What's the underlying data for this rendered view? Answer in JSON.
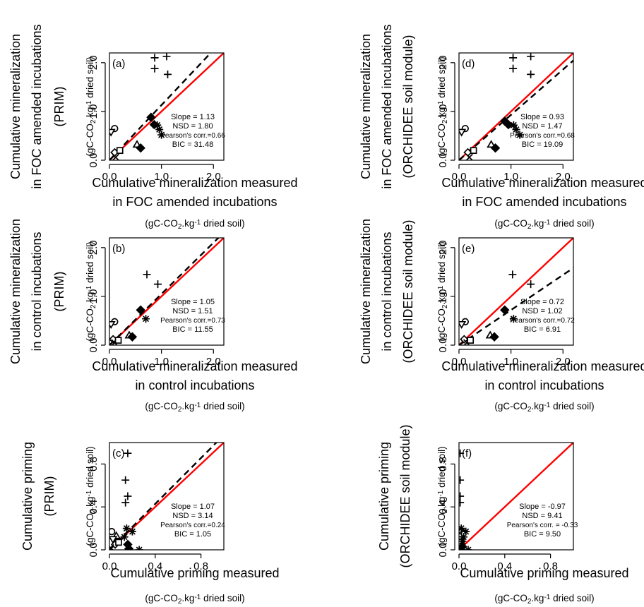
{
  "panels": [
    {
      "tag": "(a)",
      "ylabel": [
        "Cumulative mineralization",
        "in FOC amended incubations",
        "(PRIM)"
      ],
      "xlabel": [
        "Cumulative mineralization measured",
        "in FOC amended incubations"
      ],
      "stats": [
        "Slope = 1.13",
        "NSD = 1.80",
        "Pearson's corr.=0.66",
        "BIC = 31.48"
      ]
    },
    {
      "tag": "(b)",
      "ylabel": [
        "Cumulative mineralization",
        "in control incubations",
        "(PRIM)"
      ],
      "xlabel": [
        "Cumulative mineralization measured",
        "in control incubations"
      ],
      "stats": [
        "Slope = 1.05",
        "NSD = 1.51",
        "Pearson's corr.=0.73",
        "BIC = 11.55"
      ]
    },
    {
      "tag": "(c)",
      "ylabel": [
        "Cumulative priming",
        "(PRIM)"
      ],
      "xlabel": [
        "Cumulative priming measured"
      ],
      "stats": [
        "Slope = 1.07",
        "NSD = 3.14",
        "Pearson's corr.=0.24",
        "BIC = 1.05"
      ]
    },
    {
      "tag": "(d)",
      "ylabel": [
        "Cumulative mineralization",
        "in FOC amended incubations",
        "(ORCHIDEE soil module)"
      ],
      "xlabel": [
        "Cumulative mineralization measured",
        "in FOC amended incubations"
      ],
      "stats": [
        "Slope = 0.93",
        "NSD = 1.47",
        "Pearson's corr.=0.68",
        "BIC = 19.09"
      ]
    },
    {
      "tag": "(e)",
      "ylabel": [
        "Cumulative mineralization",
        "in control incubations",
        "(ORCHIDEE soil module)"
      ],
      "xlabel": [
        "Cumulative mineralization measured",
        "in control incubations"
      ],
      "stats": [
        "Slope = 0.72",
        "NSD = 1.02",
        "Pearson's corr.=0.72",
        "BIC = 6.91"
      ]
    },
    {
      "tag": "(f)",
      "ylabel": [
        "Cumulative priming",
        "(ORCHIDEE soil module)"
      ],
      "xlabel": [
        "Cumulative priming measured"
      ],
      "stats": [
        "Slope = -0.97",
        "NSD = 9.41",
        "Pearson's corr. = -0.33",
        "BIC = 9.50"
      ]
    }
  ],
  "units": {
    "prefix": "(gC-CO",
    "sub": "2",
    "mid": ".kg",
    "sup": "-1",
    "suffix": " dried soil)"
  },
  "chart_data": [
    {
      "type": "scatter",
      "panel": "a",
      "xlim": [
        0,
        2.2
      ],
      "ylim": [
        0,
        2.2
      ],
      "xticks": [
        "0.0",
        "1.0",
        "2.0"
      ],
      "yticks": [
        "0.0",
        "1.0",
        "2.0"
      ],
      "ticks": [
        0,
        1,
        2
      ],
      "one_to_one": true,
      "fit_slope": 1.13,
      "points": [
        {
          "marker": "plus",
          "x": 0.87,
          "y": 2.1
        },
        {
          "marker": "plus",
          "x": 0.87,
          "y": 1.88
        },
        {
          "marker": "plus",
          "x": 1.1,
          "y": 2.13
        },
        {
          "marker": "plus",
          "x": 1.12,
          "y": 1.76
        },
        {
          "marker": "circle",
          "x": 0.1,
          "y": 0.65
        },
        {
          "marker": "triangle-down",
          "x": 0.03,
          "y": 0.58
        },
        {
          "marker": "diamond-open",
          "x": 0.1,
          "y": 0.16
        },
        {
          "marker": "cross",
          "x": 0.12,
          "y": 0.06
        },
        {
          "marker": "square-open",
          "x": 0.2,
          "y": 0.2
        },
        {
          "marker": "triangle-up",
          "x": 0.53,
          "y": 0.32
        },
        {
          "marker": "diamond",
          "x": 0.6,
          "y": 0.25
        },
        {
          "marker": "diamond",
          "x": 0.8,
          "y": 0.88
        },
        {
          "marker": "diamond",
          "x": 0.86,
          "y": 0.73
        },
        {
          "marker": "star",
          "x": 0.92,
          "y": 0.72
        },
        {
          "marker": "star",
          "x": 0.96,
          "y": 0.63
        },
        {
          "marker": "star",
          "x": 1.0,
          "y": 0.52
        }
      ]
    },
    {
      "type": "scatter",
      "panel": "b",
      "xlim": [
        0,
        2.2
      ],
      "ylim": [
        0,
        2.2
      ],
      "xticks": [
        "0.0",
        "1.0",
        "2.0"
      ],
      "yticks": [
        "0.0",
        "1.0",
        "2.0"
      ],
      "ticks": [
        0,
        1,
        2
      ],
      "one_to_one": true,
      "fit_slope": 1.05,
      "points": [
        {
          "marker": "plus",
          "x": 0.72,
          "y": 1.45
        },
        {
          "marker": "plus",
          "x": 0.93,
          "y": 1.25
        },
        {
          "marker": "circle",
          "x": 0.1,
          "y": 0.48
        },
        {
          "marker": "triangle-down",
          "x": 0.03,
          "y": 0.43
        },
        {
          "marker": "diamond-open",
          "x": 0.07,
          "y": 0.12
        },
        {
          "marker": "cross",
          "x": 0.1,
          "y": 0.05
        },
        {
          "marker": "square-open",
          "x": 0.17,
          "y": 0.1
        },
        {
          "marker": "triangle-up",
          "x": 0.38,
          "y": 0.2
        },
        {
          "marker": "diamond",
          "x": 0.44,
          "y": 0.17
        },
        {
          "marker": "diamond",
          "x": 0.6,
          "y": 0.72
        },
        {
          "marker": "star",
          "x": 0.7,
          "y": 0.54
        }
      ]
    },
    {
      "type": "scatter",
      "panel": "c",
      "xlim": [
        0,
        1.0
      ],
      "ylim": [
        0,
        1.0
      ],
      "xticks": [
        "0.0",
        "0.4",
        "0.8"
      ],
      "yticks": [
        "0.0",
        "0.4",
        "0.8"
      ],
      "ticks": [
        0,
        0.4,
        0.8
      ],
      "one_to_one": true,
      "fit_slope": 1.07,
      "points": [
        {
          "marker": "plus",
          "x": 0.16,
          "y": 0.9
        },
        {
          "marker": "plus",
          "x": 0.14,
          "y": 0.65
        },
        {
          "marker": "plus",
          "x": 0.16,
          "y": 0.5
        },
        {
          "marker": "plus",
          "x": 0.14,
          "y": 0.44
        },
        {
          "marker": "circle",
          "x": 0.02,
          "y": 0.17
        },
        {
          "marker": "triangle-up",
          "x": 0.06,
          "y": 0.13
        },
        {
          "marker": "triangle-down",
          "x": 0.03,
          "y": 0.1
        },
        {
          "marker": "diamond-open",
          "x": 0.05,
          "y": 0.05
        },
        {
          "marker": "cross",
          "x": 0.01,
          "y": 0.02
        },
        {
          "marker": "square-open",
          "x": 0.08,
          "y": 0.07
        },
        {
          "marker": "star",
          "x": 0.15,
          "y": 0.2
        },
        {
          "marker": "star",
          "x": 0.2,
          "y": 0.17
        },
        {
          "marker": "star",
          "x": 0.13,
          "y": 0.12
        },
        {
          "marker": "star",
          "x": 0.26,
          "y": 0.0
        },
        {
          "marker": "diamond",
          "x": 0.16,
          "y": 0.05
        },
        {
          "marker": "diamond",
          "x": 0.17,
          "y": 0.01
        }
      ]
    },
    {
      "type": "scatter",
      "panel": "d",
      "xlim": [
        0,
        2.2
      ],
      "ylim": [
        0,
        2.2
      ],
      "xticks": [
        "0.0",
        "1.0",
        "2.0"
      ],
      "yticks": [
        "0.0",
        "1.0",
        "2.0"
      ],
      "ticks": [
        0,
        1,
        2
      ],
      "one_to_one": true,
      "fit_slope": 0.93,
      "points": [
        {
          "marker": "plus",
          "x": 1.04,
          "y": 2.1
        },
        {
          "marker": "plus",
          "x": 1.04,
          "y": 1.88
        },
        {
          "marker": "plus",
          "x": 1.38,
          "y": 2.13
        },
        {
          "marker": "plus",
          "x": 1.38,
          "y": 1.76
        },
        {
          "marker": "circle",
          "x": 0.12,
          "y": 0.65
        },
        {
          "marker": "triangle-down",
          "x": 0.05,
          "y": 0.58
        },
        {
          "marker": "diamond-open",
          "x": 0.17,
          "y": 0.16
        },
        {
          "marker": "cross",
          "x": 0.2,
          "y": 0.06
        },
        {
          "marker": "square-open",
          "x": 0.28,
          "y": 0.2
        },
        {
          "marker": "triangle-up",
          "x": 0.62,
          "y": 0.32
        },
        {
          "marker": "diamond",
          "x": 0.7,
          "y": 0.25
        },
        {
          "marker": "diamond",
          "x": 0.88,
          "y": 0.8
        },
        {
          "marker": "diamond",
          "x": 0.95,
          "y": 0.73
        },
        {
          "marker": "star",
          "x": 1.05,
          "y": 0.72
        },
        {
          "marker": "star",
          "x": 1.1,
          "y": 0.63
        },
        {
          "marker": "star",
          "x": 1.17,
          "y": 0.52
        }
      ]
    },
    {
      "type": "scatter",
      "panel": "e",
      "xlim": [
        0,
        2.2
      ],
      "ylim": [
        0,
        2.2
      ],
      "xticks": [
        "0.0",
        "1.0",
        "2.0"
      ],
      "yticks": [
        "0.0",
        "1.0",
        "2.0"
      ],
      "ticks": [
        0,
        1,
        2
      ],
      "one_to_one": true,
      "fit_slope": 0.72,
      "points": [
        {
          "marker": "plus",
          "x": 1.03,
          "y": 1.45
        },
        {
          "marker": "plus",
          "x": 1.38,
          "y": 1.25
        },
        {
          "marker": "circle",
          "x": 0.12,
          "y": 0.48
        },
        {
          "marker": "triangle-down",
          "x": 0.05,
          "y": 0.43
        },
        {
          "marker": "diamond-open",
          "x": 0.1,
          "y": 0.12
        },
        {
          "marker": "cross",
          "x": 0.15,
          "y": 0.05
        },
        {
          "marker": "square-open",
          "x": 0.22,
          "y": 0.1
        },
        {
          "marker": "triangle-up",
          "x": 0.6,
          "y": 0.2
        },
        {
          "marker": "diamond",
          "x": 0.68,
          "y": 0.17
        },
        {
          "marker": "diamond",
          "x": 0.88,
          "y": 0.72
        },
        {
          "marker": "star",
          "x": 1.05,
          "y": 0.54
        }
      ]
    },
    {
      "type": "scatter",
      "panel": "f",
      "xlim": [
        0,
        1.0
      ],
      "ylim": [
        0,
        1.0
      ],
      "xticks": [
        "0.0",
        "0.4",
        "0.8"
      ],
      "yticks": [
        "0.0",
        "0.4",
        "0.8"
      ],
      "ticks": [
        0,
        0.4,
        0.8
      ],
      "one_to_one": true,
      "fit_slope": null,
      "points": [
        {
          "marker": "plus",
          "x": 0.01,
          "y": 0.9
        },
        {
          "marker": "plus",
          "x": 0.01,
          "y": 0.65
        },
        {
          "marker": "plus",
          "x": 0.01,
          "y": 0.5
        },
        {
          "marker": "plus",
          "x": 0.01,
          "y": 0.44
        },
        {
          "marker": "circle",
          "x": 0.0,
          "y": 0.17
        },
        {
          "marker": "triangle-up",
          "x": 0.01,
          "y": 0.13
        },
        {
          "marker": "triangle-down",
          "x": 0.0,
          "y": 0.1
        },
        {
          "marker": "diamond-open",
          "x": 0.01,
          "y": 0.05
        },
        {
          "marker": "cross",
          "x": 0.0,
          "y": 0.02
        },
        {
          "marker": "square-open",
          "x": 0.02,
          "y": 0.07
        },
        {
          "marker": "star",
          "x": 0.02,
          "y": 0.2
        },
        {
          "marker": "star",
          "x": 0.06,
          "y": 0.17
        },
        {
          "marker": "star",
          "x": 0.04,
          "y": 0.12
        },
        {
          "marker": "star",
          "x": 0.08,
          "y": 0.0
        },
        {
          "marker": "star",
          "x": 0.03,
          "y": 0.08
        },
        {
          "marker": "diamond",
          "x": 0.03,
          "y": 0.03
        }
      ]
    }
  ]
}
